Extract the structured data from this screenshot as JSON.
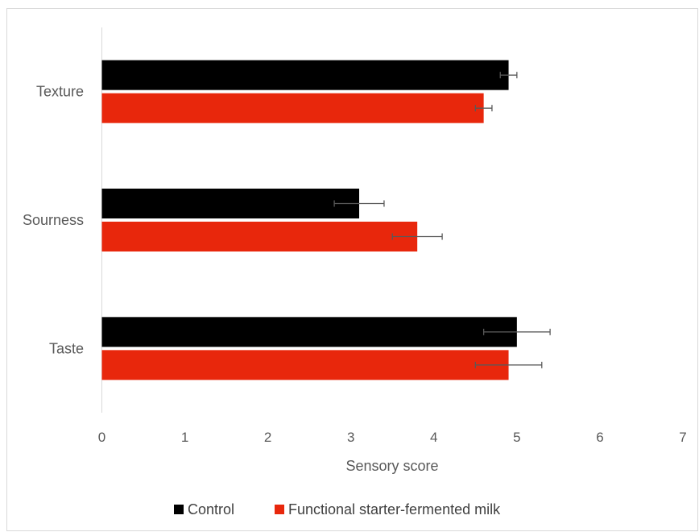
{
  "chart_data": {
    "type": "bar",
    "orientation": "horizontal",
    "categories": [
      "Taste",
      "Sourness",
      "Texture"
    ],
    "series": [
      {
        "name": "Control",
        "color": "#000000",
        "values": [
          5.0,
          3.1,
          4.9
        ],
        "errors": [
          0.4,
          0.3,
          0.1
        ]
      },
      {
        "name": "Functional starter-fermented milk",
        "color": "#e8270c",
        "values": [
          4.9,
          3.8,
          4.6
        ],
        "errors": [
          0.4,
          0.3,
          0.1
        ]
      }
    ],
    "xlabel": "Sensory score",
    "ylabel": "",
    "xlim": [
      0,
      7
    ],
    "xticks": [
      "0",
      "1",
      "2",
      "3",
      "4",
      "5",
      "6",
      "7"
    ],
    "grid": false,
    "legend_position": "bottom"
  }
}
